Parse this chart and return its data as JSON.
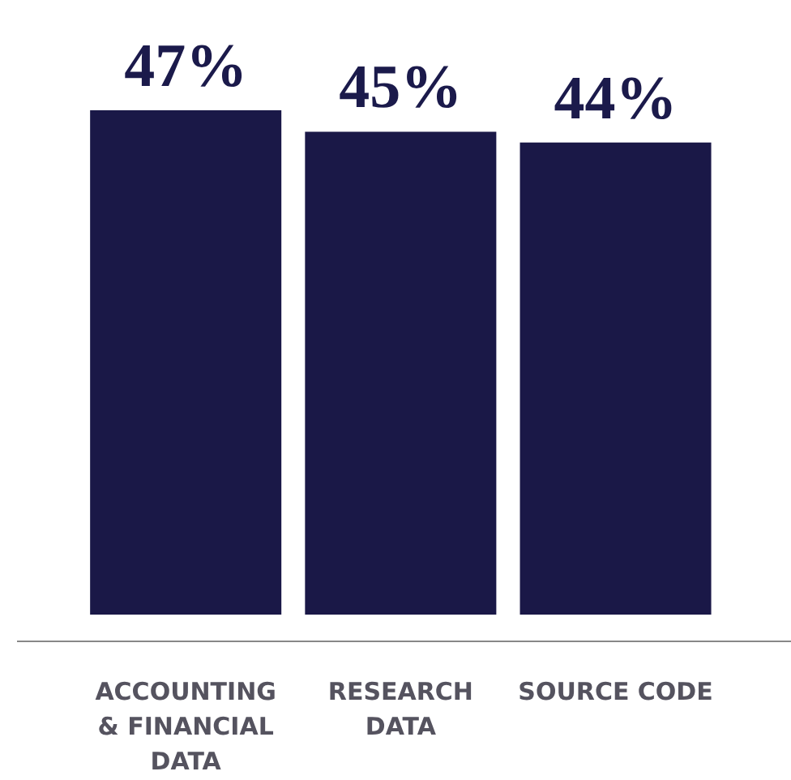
{
  "chart_data": {
    "type": "bar",
    "categories": [
      "ACCOUNTING & FINANCIAL DATA",
      "RESEARCH DATA",
      "SOURCE CODE"
    ],
    "values": [
      47,
      45,
      44
    ],
    "value_labels": [
      "47%",
      "45%",
      "44%"
    ],
    "color": "#1a1847",
    "grid": false,
    "tick_labels": "x"
  }
}
